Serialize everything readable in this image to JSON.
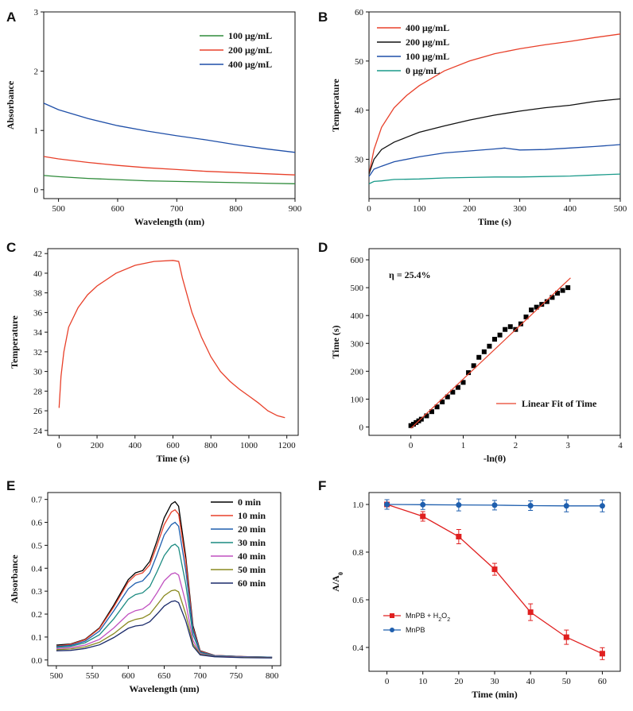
{
  "chart_data": [
    {
      "id": "A",
      "type": "line",
      "panel_label": "A",
      "xlabel": "Wavelength (nm)",
      "ylabel": "Absorbance",
      "xlim": [
        475,
        900
      ],
      "ylim": [
        -0.15,
        3
      ],
      "xticks": [
        500,
        600,
        700,
        800,
        900
      ],
      "yticks": [
        0,
        1,
        2,
        3
      ],
      "legend_position": "top-right",
      "series": [
        {
          "name": "100 μg/mL",
          "color": "#2e8b3a",
          "x": [
            475,
            500,
            550,
            600,
            650,
            700,
            750,
            800,
            850,
            900
          ],
          "y": [
            0.24,
            0.22,
            0.19,
            0.17,
            0.15,
            0.14,
            0.13,
            0.12,
            0.11,
            0.1
          ]
        },
        {
          "name": "200 μg/mL",
          "color": "#e8402a",
          "x": [
            475,
            500,
            550,
            600,
            650,
            700,
            750,
            800,
            850,
            900
          ],
          "y": [
            0.56,
            0.52,
            0.46,
            0.41,
            0.37,
            0.34,
            0.31,
            0.29,
            0.27,
            0.25
          ]
        },
        {
          "name": "400 μg/mL",
          "color": "#1f4fa8",
          "x": [
            475,
            500,
            550,
            600,
            650,
            700,
            750,
            800,
            850,
            900
          ],
          "y": [
            1.46,
            1.35,
            1.2,
            1.08,
            0.99,
            0.91,
            0.84,
            0.76,
            0.69,
            0.63
          ]
        }
      ]
    },
    {
      "id": "B",
      "type": "line",
      "panel_label": "B",
      "xlabel": "Time (s)",
      "ylabel": "Temperature",
      "xlim": [
        0,
        500
      ],
      "ylim": [
        22,
        60
      ],
      "xticks": [
        0,
        100,
        200,
        300,
        400,
        500
      ],
      "yticks": [
        30,
        40,
        50,
        60
      ],
      "legend_position": "top-left",
      "series": [
        {
          "name": "400 μg/mL",
          "color": "#e8402a",
          "x": [
            0,
            10,
            25,
            50,
            75,
            100,
            150,
            200,
            250,
            300,
            350,
            400,
            450,
            500
          ],
          "y": [
            27,
            32,
            36.5,
            40.5,
            43,
            45,
            48,
            50,
            51.5,
            52.5,
            53.3,
            54,
            54.8,
            55.5
          ]
        },
        {
          "name": "200 μg/mL",
          "color": "#111111",
          "x": [
            0,
            10,
            25,
            50,
            75,
            100,
            150,
            200,
            250,
            300,
            350,
            400,
            450,
            500
          ],
          "y": [
            27,
            30,
            32,
            33.5,
            34.5,
            35.5,
            36.8,
            38,
            39,
            39.8,
            40.5,
            41,
            41.8,
            42.3
          ]
        },
        {
          "name": "100 μg/mL",
          "color": "#1f4fa8",
          "x": [
            0,
            10,
            25,
            50,
            100,
            150,
            200,
            250,
            270,
            300,
            350,
            400,
            450,
            500
          ],
          "y": [
            26.5,
            28,
            28.6,
            29.5,
            30.5,
            31.3,
            31.7,
            32.1,
            32.3,
            31.9,
            32.0,
            32.3,
            32.6,
            33.0
          ]
        },
        {
          "name": "0 μg/mL",
          "color": "#1a9a8a",
          "x": [
            0,
            10,
            25,
            50,
            100,
            150,
            200,
            250,
            300,
            350,
            400,
            450,
            500
          ],
          "y": [
            25,
            25.5,
            25.6,
            25.9,
            26.0,
            26.2,
            26.3,
            26.4,
            26.4,
            26.5,
            26.6,
            26.8,
            27.0
          ]
        }
      ]
    },
    {
      "id": "C",
      "type": "line",
      "panel_label": "C",
      "xlabel": "Time (s)",
      "ylabel": "Temperature",
      "xlim": [
        -60,
        1260
      ],
      "ylim": [
        23.5,
        42.5
      ],
      "xticks": [
        0,
        200,
        400,
        600,
        800,
        1000,
        1200
      ],
      "yticks": [
        24,
        26,
        28,
        30,
        32,
        34,
        36,
        38,
        40,
        42
      ],
      "series": [
        {
          "name": "",
          "color": "#e8402a",
          "x": [
            0,
            10,
            25,
            50,
            100,
            150,
            200,
            300,
            400,
            500,
            600,
            630,
            650,
            700,
            750,
            800,
            850,
            900,
            950,
            1000,
            1050,
            1100,
            1150,
            1190
          ],
          "y": [
            26.3,
            29.5,
            32,
            34.5,
            36.5,
            37.8,
            38.7,
            40.0,
            40.8,
            41.2,
            41.3,
            41.2,
            39.5,
            36.0,
            33.5,
            31.5,
            30.0,
            29.0,
            28.2,
            27.5,
            26.8,
            26.0,
            25.5,
            25.3
          ]
        }
      ]
    },
    {
      "id": "D",
      "type": "scatter",
      "panel_label": "D",
      "xlabel": "-ln(θ)",
      "ylabel": "Time (s)",
      "xlim": [
        -0.8,
        4
      ],
      "ylim": [
        -30,
        640
      ],
      "xticks": [
        0,
        1,
        2,
        3,
        4
      ],
      "yticks": [
        0,
        100,
        200,
        300,
        400,
        500,
        600
      ],
      "annotation": "η = 25.4%",
      "fit_legend": "Linear Fit of Time",
      "fit": {
        "color": "#e8402a",
        "x": [
          0,
          3.05
        ],
        "y": [
          -5,
          535
        ]
      },
      "points": {
        "x": [
          0,
          0.05,
          0.1,
          0.15,
          0.2,
          0.3,
          0.4,
          0.5,
          0.6,
          0.7,
          0.8,
          0.9,
          1.0,
          1.1,
          1.2,
          1.3,
          1.4,
          1.5,
          1.6,
          1.7,
          1.8,
          1.9,
          2.0,
          2.1,
          2.2,
          2.3,
          2.4,
          2.5,
          2.6,
          2.7,
          2.8,
          2.9,
          3.0
        ],
        "y": [
          5,
          10,
          16,
          22,
          28,
          40,
          55,
          72,
          90,
          108,
          125,
          142,
          160,
          195,
          220,
          250,
          270,
          290,
          315,
          330,
          350,
          360,
          350,
          370,
          395,
          420,
          430,
          440,
          450,
          465,
          480,
          490,
          500
        ]
      }
    },
    {
      "id": "E",
      "type": "line",
      "panel_label": "E",
      "xlabel": "Wavelength (nm)",
      "ylabel": "Absorbance",
      "xlim": [
        488,
        812
      ],
      "ylim": [
        -0.025,
        0.73
      ],
      "xticks": [
        500,
        550,
        600,
        650,
        700,
        750,
        800
      ],
      "yticks": [
        0.0,
        0.1,
        0.2,
        0.3,
        0.4,
        0.5,
        0.6,
        0.7
      ],
      "legend_position": "top-right",
      "series": [
        {
          "name": "0 min",
          "color": "#000000",
          "x": [
            500,
            520,
            540,
            560,
            580,
            600,
            610,
            620,
            630,
            640,
            650,
            660,
            665,
            670,
            680,
            690,
            700,
            720,
            760,
            800
          ],
          "y": [
            0.065,
            0.07,
            0.09,
            0.14,
            0.24,
            0.35,
            0.38,
            0.39,
            0.43,
            0.52,
            0.62,
            0.68,
            0.69,
            0.67,
            0.45,
            0.15,
            0.04,
            0.02,
            0.015,
            0.012
          ]
        },
        {
          "name": "10 min",
          "color": "#e8402a",
          "x": [
            500,
            520,
            540,
            560,
            580,
            600,
            610,
            620,
            630,
            640,
            650,
            660,
            665,
            670,
            680,
            690,
            700,
            720,
            760,
            800
          ],
          "y": [
            0.06,
            0.068,
            0.088,
            0.137,
            0.232,
            0.34,
            0.37,
            0.38,
            0.415,
            0.5,
            0.59,
            0.645,
            0.655,
            0.636,
            0.43,
            0.14,
            0.038,
            0.02,
            0.015,
            0.012
          ]
        },
        {
          "name": "20 min",
          "color": "#1f5fae",
          "x": [
            500,
            520,
            540,
            560,
            580,
            600,
            610,
            620,
            630,
            640,
            650,
            660,
            665,
            670,
            680,
            690,
            700,
            720,
            760,
            800
          ],
          "y": [
            0.058,
            0.064,
            0.082,
            0.126,
            0.215,
            0.31,
            0.335,
            0.345,
            0.38,
            0.46,
            0.545,
            0.59,
            0.6,
            0.583,
            0.39,
            0.13,
            0.035,
            0.019,
            0.014,
            0.012
          ]
        },
        {
          "name": "30 min",
          "color": "#1a8a80",
          "x": [
            500,
            520,
            540,
            560,
            580,
            600,
            610,
            620,
            630,
            640,
            650,
            660,
            665,
            670,
            680,
            690,
            700,
            720,
            760,
            800
          ],
          "y": [
            0.055,
            0.06,
            0.075,
            0.11,
            0.18,
            0.265,
            0.285,
            0.293,
            0.32,
            0.385,
            0.455,
            0.497,
            0.505,
            0.49,
            0.33,
            0.11,
            0.032,
            0.018,
            0.013,
            0.011
          ]
        },
        {
          "name": "40 min",
          "color": "#c050c0",
          "x": [
            500,
            520,
            540,
            560,
            580,
            600,
            610,
            620,
            630,
            640,
            650,
            660,
            665,
            670,
            680,
            690,
            700,
            720,
            760,
            800
          ],
          "y": [
            0.05,
            0.054,
            0.065,
            0.09,
            0.14,
            0.2,
            0.215,
            0.222,
            0.245,
            0.293,
            0.345,
            0.375,
            0.38,
            0.37,
            0.25,
            0.085,
            0.028,
            0.016,
            0.012,
            0.01
          ]
        },
        {
          "name": "50 min",
          "color": "#8a8a20",
          "x": [
            500,
            520,
            540,
            560,
            580,
            600,
            610,
            620,
            630,
            640,
            650,
            660,
            665,
            670,
            680,
            690,
            700,
            720,
            760,
            800
          ],
          "y": [
            0.045,
            0.048,
            0.057,
            0.077,
            0.115,
            0.165,
            0.177,
            0.183,
            0.2,
            0.24,
            0.28,
            0.302,
            0.305,
            0.297,
            0.2,
            0.07,
            0.025,
            0.015,
            0.011,
            0.01
          ]
        },
        {
          "name": "60 min",
          "color": "#1a2a6a",
          "x": [
            500,
            520,
            540,
            560,
            580,
            600,
            610,
            620,
            630,
            640,
            650,
            660,
            665,
            670,
            680,
            690,
            700,
            720,
            760,
            800
          ],
          "y": [
            0.04,
            0.042,
            0.05,
            0.066,
            0.098,
            0.138,
            0.148,
            0.152,
            0.167,
            0.2,
            0.235,
            0.255,
            0.258,
            0.25,
            0.17,
            0.06,
            0.022,
            0.014,
            0.01,
            0.009
          ]
        }
      ]
    },
    {
      "id": "F",
      "type": "line",
      "panel_label": "F",
      "xlabel": "Time (min)",
      "ylabel": "A/A",
      "ylabel_sub": "0",
      "xlim": [
        -5,
        65
      ],
      "ylim": [
        0.3,
        1.05
      ],
      "xticks": [
        0,
        10,
        20,
        30,
        40,
        50,
        60
      ],
      "yticks": [
        0.4,
        0.6,
        0.8,
        1.0
      ],
      "legend_position": "bottom-left",
      "series": [
        {
          "name": "MnPB + H",
          "name_sub": "2",
          "name_mid": "O",
          "name_sub2": "2",
          "color": "#e02020",
          "marker": "square",
          "x": [
            0,
            10,
            20,
            30,
            40,
            50,
            60
          ],
          "y": [
            1.0,
            0.95,
            0.865,
            0.728,
            0.548,
            0.443,
            0.374
          ],
          "err": [
            0.02,
            0.02,
            0.03,
            0.025,
            0.035,
            0.03,
            0.025
          ]
        },
        {
          "name": "MnPB",
          "color": "#1f5fae",
          "marker": "circle",
          "x": [
            0,
            10,
            20,
            30,
            40,
            50,
            60
          ],
          "y": [
            1.0,
            0.999,
            0.998,
            0.997,
            0.995,
            0.994,
            0.994
          ],
          "err": [
            0.02,
            0.02,
            0.025,
            0.02,
            0.02,
            0.025,
            0.025
          ]
        }
      ]
    }
  ]
}
